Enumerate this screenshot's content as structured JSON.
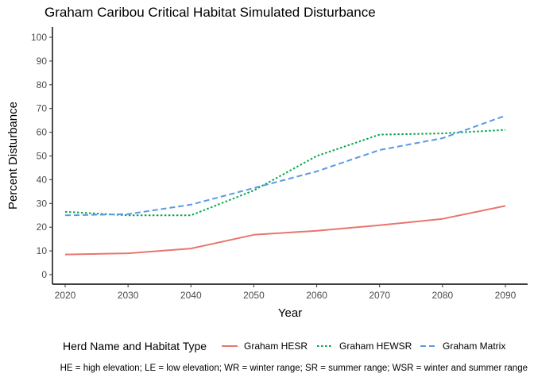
{
  "chart_data": {
    "type": "line",
    "title": "Graham Caribou Critical Habitat Simulated Disturbance",
    "xlabel": "Year",
    "ylabel": "Percent Disturbance",
    "x": [
      2020,
      2030,
      2040,
      2050,
      2060,
      2070,
      2080,
      2090
    ],
    "xticks": [
      "2020",
      "2030",
      "2040",
      "2050",
      "2060",
      "2070",
      "2080",
      "2090"
    ],
    "yticks": [
      "0",
      "10",
      "20",
      "30",
      "40",
      "50",
      "60",
      "70",
      "80",
      "90",
      "100"
    ],
    "xlim": [
      2020,
      2090
    ],
    "ylim": [
      0,
      100
    ],
    "grid": false,
    "legend_title": "Herd Name and Habitat Type",
    "legend_position": "bottom",
    "series": [
      {
        "name": "Graham HESR",
        "color": "#E8766D",
        "dash": "solid",
        "values": [
          8.5,
          9,
          11,
          16.8,
          18.5,
          20.8,
          23.5,
          29
        ]
      },
      {
        "name": "Graham HEWSR",
        "color": "#00A94A",
        "dash": "dotted",
        "values": [
          26.5,
          25,
          25,
          35.5,
          50,
          59,
          59.5,
          61
        ]
      },
      {
        "name": "Graham Matrix",
        "color": "#5A99E5",
        "dash": "dashed",
        "values": [
          25,
          25.5,
          29.5,
          36.5,
          43.5,
          52.5,
          57.5,
          67
        ]
      }
    ],
    "caption": "HE = high elevation; LE = low elevation; WR  = winter range; SR = summer range; WSR = winter and summer range"
  }
}
